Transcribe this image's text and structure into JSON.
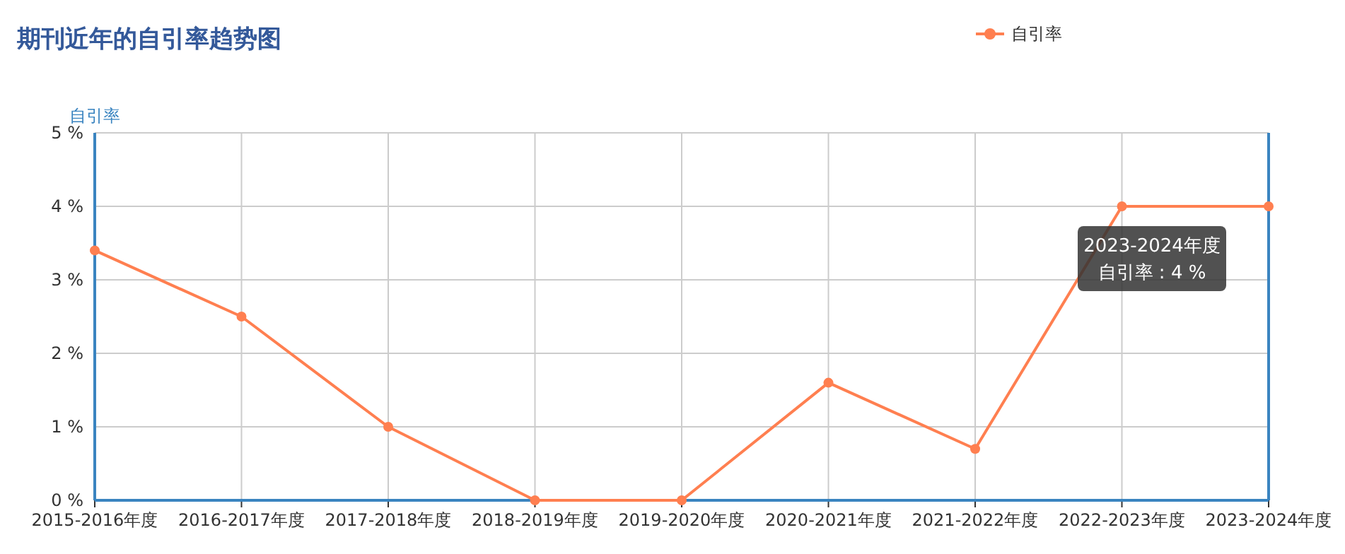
{
  "chart_data": {
    "type": "line",
    "title": "期刊近年的自引率趋势图",
    "ylabel": "自引率",
    "categories": [
      "2015-2016年度",
      "2016-2017年度",
      "2017-2018年度",
      "2018-2019年度",
      "2019-2020年度",
      "2020-2021年度",
      "2021-2022年度",
      "2022-2023年度",
      "2023-2024年度"
    ],
    "series": [
      {
        "name": "自引率",
        "color": "#ff7f50",
        "values": [
          3.4,
          2.5,
          1.0,
          0,
          0,
          1.6,
          0.7,
          4,
          4
        ]
      }
    ],
    "ylim": [
      0,
      5
    ],
    "yticks": [
      {
        "value": 0,
        "label": "0 %"
      },
      {
        "value": 1,
        "label": "1 %"
      },
      {
        "value": 2,
        "label": "2 %"
      },
      {
        "value": 3,
        "label": "3 %"
      },
      {
        "value": 4,
        "label": "4 %"
      },
      {
        "value": 5,
        "label": "5 %"
      }
    ],
    "grid": true,
    "legend": "top right",
    "marker": "circle",
    "line_style": "solid",
    "annotations": [
      "2023-2024年度",
      "自引率 : 4 %"
    ]
  }
}
